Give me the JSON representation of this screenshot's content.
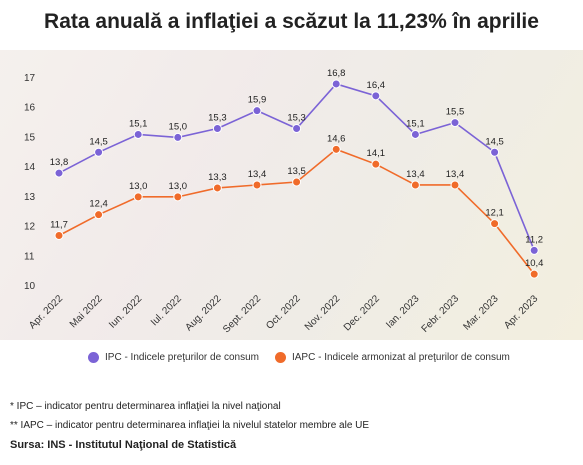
{
  "title": "Rata anuală a inflaţiei a scăzut la 11,23% în aprilie",
  "chart_data": {
    "type": "line",
    "categories": [
      "Apr. 2022",
      "Mai 2022",
      "Iun. 2022",
      "Iul. 2022",
      "Aug. 2022",
      "Sept. 2022",
      "Oct. 2022",
      "Nov. 2022",
      "Dec. 2022",
      "Ian. 2023",
      "Febr. 2023",
      "Mar. 2023",
      "Apr. 2023"
    ],
    "series": [
      {
        "name": "IPC - Indicele preţurilor de consum",
        "color": "#7b63d6",
        "values": [
          13.8,
          14.5,
          15.1,
          15.0,
          15.3,
          15.9,
          15.3,
          16.8,
          16.4,
          15.1,
          15.5,
          14.5,
          11.2
        ],
        "labels": [
          "13,8",
          "14,5",
          "15,1",
          "15,0",
          "15,3",
          "15,9",
          "15,3",
          "16,8",
          "16,4",
          "15,1",
          "15,5",
          "14,5",
          "11,2"
        ]
      },
      {
        "name": "IAPC - Indicele armonizat al preţurilor de consum",
        "color": "#f06b2a",
        "values": [
          11.7,
          12.4,
          13.0,
          13.0,
          13.3,
          13.4,
          13.5,
          14.6,
          14.1,
          13.4,
          13.4,
          12.1,
          10.4
        ],
        "labels": [
          "11,7",
          "12,4",
          "13,0",
          "13,0",
          "13,3",
          "13,4",
          "13,5",
          "14,6",
          "14,1",
          "13,4",
          "13,4",
          "12,1",
          "10,4"
        ]
      }
    ],
    "yticks": [
      "10",
      "11",
      "12",
      "13",
      "14",
      "15",
      "16",
      "17"
    ],
    "ylim": [
      10,
      17
    ],
    "grid": false,
    "legend": "bottom"
  },
  "notes": {
    "ipc": "* IPC – indicator pentru determinarea inflaţiei la nivel naţional",
    "iapc": "** IAPC – indicator pentru determinarea inflaţiei la nivelul statelor membre ale UE",
    "source": "Sursa: INS - Institutul Naţional de Statistică"
  }
}
